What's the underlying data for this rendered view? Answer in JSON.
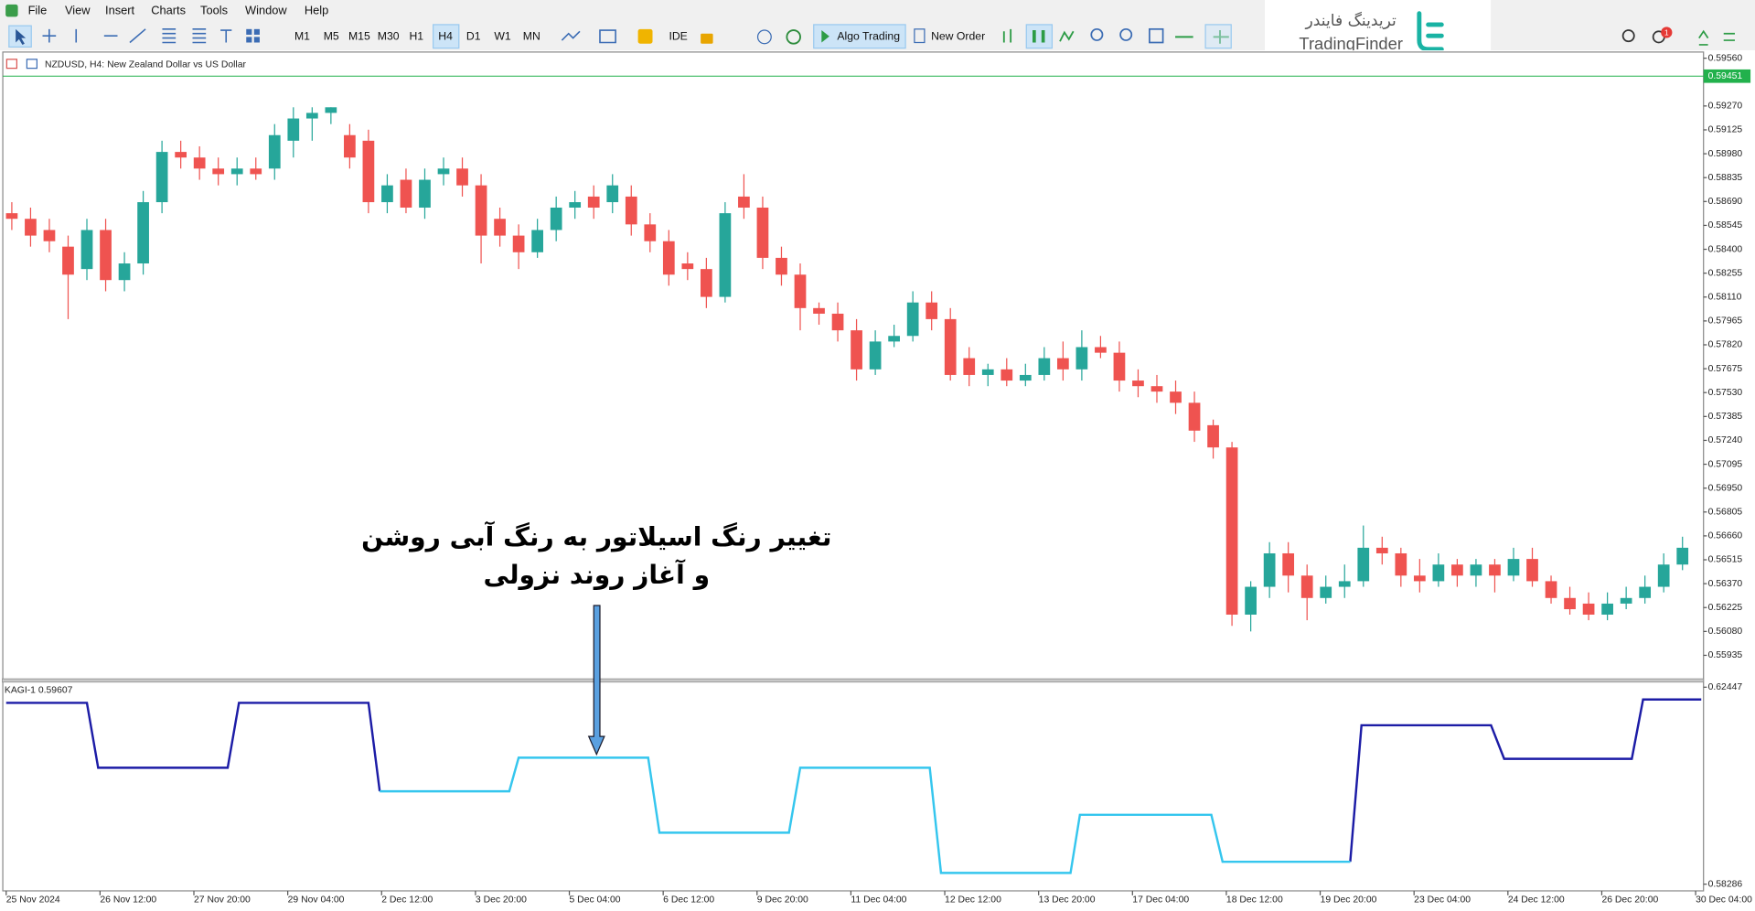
{
  "menu": [
    "File",
    "View",
    "Insert",
    "Charts",
    "Tools",
    "Window",
    "Help"
  ],
  "toolbar": {
    "timeframes": [
      "M1",
      "M5",
      "M15",
      "M30",
      "H1",
      "H4",
      "D1",
      "W1",
      "MN"
    ],
    "ide": "IDE",
    "algo_trading": "Algo Trading",
    "new_order": "New Order"
  },
  "logo": {
    "persian": "تریدینگ فایندر",
    "latin": "TradingFinder"
  },
  "notifications": 1,
  "annotation": [
    "تغییر رنگ اسیلاتور به رنگ آبی روشن",
    "و آغاز روند نزولی"
  ],
  "chart_data": [
    {
      "type": "candlestick",
      "title": "NZDUSD, H4:  New Zealand Dollar vs US Dollar",
      "up_color": "#26a69a",
      "down_color": "#ef5350",
      "last_price": 0.59451,
      "last_price_color": "#22b14c",
      "xlim": [
        -0.48,
        90.12
      ],
      "ylim": [
        0.55796,
        0.59594
      ],
      "yticks": [
        {
          "value": 0.5956,
          "label": "0.59560"
        },
        {
          "value": 0.5927,
          "label": "0.59270"
        },
        0.59125,
        {
          "value": 0.5898,
          "label": "0.58980"
        },
        0.58835,
        {
          "value": 0.5869,
          "label": "0.58690"
        },
        0.58545,
        {
          "value": 0.584,
          "label": "0.58400"
        },
        0.58255,
        {
          "value": 0.5811,
          "label": "0.58110"
        },
        0.57965,
        {
          "value": 0.5782,
          "label": "0.57820"
        },
        0.57675,
        {
          "value": 0.5753,
          "label": "0.57530"
        },
        0.57385,
        {
          "value": 0.5724,
          "label": "0.57240"
        },
        0.57095,
        {
          "value": 0.5695,
          "label": "0.56950"
        },
        0.56805,
        {
          "value": 0.5666,
          "label": "0.56660"
        },
        0.56515,
        {
          "value": 0.5637,
          "label": "0.56370"
        },
        0.56225,
        {
          "value": 0.5608,
          "label": "0.56080"
        },
        0.55935
      ],
      "xticks": [
        {
          "value": -0.3,
          "label": "25 Nov 2024"
        },
        {
          "value": 4.7,
          "label": "26 Nov 12:00"
        },
        {
          "value": 9.7,
          "label": "27 Nov 20:00"
        },
        {
          "value": 14.7,
          "label": "29 Nov 04:00"
        },
        {
          "value": 19.7,
          "label": "2 Dec 12:00"
        },
        {
          "value": 24.7,
          "label": "3 Dec 20:00"
        },
        {
          "value": 29.7,
          "label": "5 Dec 04:00"
        },
        {
          "value": 34.7,
          "label": "6 Dec 12:00"
        },
        {
          "value": 39.7,
          "label": "9 Dec 20:00"
        },
        {
          "value": 44.7,
          "label": "11 Dec 04:00"
        },
        {
          "value": 49.7,
          "label": "12 Dec 12:00"
        },
        {
          "value": 54.7,
          "label": "13 Dec 20:00"
        },
        {
          "value": 59.7,
          "label": "17 Dec 04:00"
        },
        {
          "value": 64.7,
          "label": "18 Dec 12:00"
        },
        {
          "value": 69.7,
          "label": "19 Dec 20:00"
        },
        {
          "value": 74.7,
          "label": "23 Dec 04:00"
        },
        {
          "value": 79.7,
          "label": "24 Dec 12:00"
        },
        {
          "value": 84.7,
          "label": "26 Dec 20:00"
        },
        {
          "value": 89.7,
          "label": "30 Dec 04:00"
        }
      ],
      "candles": [
        [
          0.58619,
          0.58686,
          0.58517,
          0.58585
        ],
        [
          0.58585,
          0.58653,
          0.58416,
          0.58483
        ],
        [
          0.58517,
          0.58585,
          0.58382,
          0.58449
        ],
        [
          0.58416,
          0.58483,
          0.57976,
          0.58246
        ],
        [
          0.5828,
          0.58585,
          0.58213,
          0.58517
        ],
        [
          0.58517,
          0.58585,
          0.58145,
          0.58213
        ],
        [
          0.58213,
          0.58382,
          0.58145,
          0.58314
        ],
        [
          0.58314,
          0.58754,
          0.58246,
          0.58686
        ],
        [
          0.58686,
          0.59059,
          0.58619,
          0.58991
        ],
        [
          0.58991,
          0.59059,
          0.5889,
          0.58957
        ],
        [
          0.58957,
          0.59025,
          0.58822,
          0.5889
        ],
        [
          0.5889,
          0.58957,
          0.58788,
          0.58856
        ],
        [
          0.58856,
          0.58957,
          0.58788,
          0.5889
        ],
        [
          0.5889,
          0.58957,
          0.58822,
          0.58856
        ],
        [
          0.5889,
          0.5916,
          0.58822,
          0.59093
        ],
        [
          0.59059,
          0.59262,
          0.58957,
          0.59194
        ],
        [
          0.59194,
          0.59262,
          0.59059,
          0.59228
        ],
        [
          0.59228,
          0.59262,
          0.5916,
          0.59262
        ],
        [
          0.59093,
          0.5916,
          0.5889,
          0.58957
        ],
        [
          0.59059,
          0.59126,
          0.58619,
          0.58686
        ],
        [
          0.58686,
          0.58856,
          0.58619,
          0.58788
        ],
        [
          0.58822,
          0.5889,
          0.58619,
          0.58653
        ],
        [
          0.58653,
          0.5889,
          0.58585,
          0.58822
        ],
        [
          0.58856,
          0.58957,
          0.58788,
          0.5889
        ],
        [
          0.5889,
          0.58957,
          0.5872,
          0.58788
        ],
        [
          0.58788,
          0.58856,
          0.58314,
          0.58483
        ],
        [
          0.58585,
          0.58653,
          0.58416,
          0.58483
        ],
        [
          0.58483,
          0.58551,
          0.5828,
          0.58382
        ],
        [
          0.58382,
          0.58585,
          0.58348,
          0.58517
        ],
        [
          0.58517,
          0.5872,
          0.58449,
          0.58653
        ],
        [
          0.58653,
          0.58754,
          0.58585,
          0.58686
        ],
        [
          0.5872,
          0.58788,
          0.58585,
          0.58653
        ],
        [
          0.58686,
          0.58856,
          0.58619,
          0.58788
        ],
        [
          0.5872,
          0.58788,
          0.58483,
          0.58551
        ],
        [
          0.58551,
          0.58619,
          0.58382,
          0.58449
        ],
        [
          0.58449,
          0.58517,
          0.58179,
          0.58246
        ],
        [
          0.58314,
          0.58382,
          0.58213,
          0.5828
        ],
        [
          0.5828,
          0.58348,
          0.58043,
          0.58111
        ],
        [
          0.58111,
          0.58686,
          0.58077,
          0.58619
        ],
        [
          0.5872,
          0.58856,
          0.58585,
          0.58653
        ],
        [
          0.58653,
          0.5872,
          0.5828,
          0.58348
        ],
        [
          0.58348,
          0.58416,
          0.58179,
          0.58246
        ],
        [
          0.58246,
          0.58314,
          0.57908,
          0.58043
        ],
        [
          0.58043,
          0.58077,
          0.57942,
          0.58009
        ],
        [
          0.58009,
          0.58077,
          0.5784,
          0.57908
        ],
        [
          0.57908,
          0.57976,
          0.57603,
          0.57671
        ],
        [
          0.57671,
          0.57908,
          0.57637,
          0.5784
        ],
        [
          0.5784,
          0.57942,
          0.57806,
          0.57874
        ],
        [
          0.57874,
          0.58145,
          0.5784,
          0.58077
        ],
        [
          0.58077,
          0.58145,
          0.57908,
          0.57976
        ],
        [
          0.57976,
          0.58043,
          0.57603,
          0.57637
        ],
        [
          0.57739,
          0.57806,
          0.57569,
          0.57637
        ],
        [
          0.57637,
          0.57705,
          0.57569,
          0.57671
        ],
        [
          0.57671,
          0.57739,
          0.57569,
          0.57603
        ],
        [
          0.57603,
          0.57705,
          0.57569,
          0.57637
        ],
        [
          0.57637,
          0.57806,
          0.57603,
          0.57739
        ],
        [
          0.57739,
          0.5784,
          0.57603,
          0.57671
        ],
        [
          0.57671,
          0.57908,
          0.57603,
          0.57806
        ],
        [
          0.57806,
          0.57874,
          0.57739,
          0.57772
        ],
        [
          0.57772,
          0.5784,
          0.57536,
          0.57603
        ],
        [
          0.57603,
          0.57671,
          0.57502,
          0.57569
        ],
        [
          0.57569,
          0.57637,
          0.57468,
          0.57536
        ],
        [
          0.57536,
          0.57603,
          0.574,
          0.57468
        ],
        [
          0.57468,
          0.57536,
          0.57231,
          0.57299
        ],
        [
          0.57332,
          0.57366,
          0.57129,
          0.57197
        ],
        [
          0.57197,
          0.57231,
          0.56114,
          0.56182
        ],
        [
          0.56182,
          0.56385,
          0.5608,
          0.56351
        ],
        [
          0.56351,
          0.56622,
          0.56283,
          0.56554
        ],
        [
          0.56554,
          0.56622,
          0.56317,
          0.56419
        ],
        [
          0.56419,
          0.56486,
          0.56148,
          0.56283
        ],
        [
          0.56283,
          0.56419,
          0.56249,
          0.56351
        ],
        [
          0.56351,
          0.56486,
          0.56283,
          0.56385
        ],
        [
          0.56385,
          0.56723,
          0.56351,
          0.56588
        ],
        [
          0.56588,
          0.56655,
          0.56486,
          0.56554
        ],
        [
          0.56554,
          0.56588,
          0.56351,
          0.56419
        ],
        [
          0.56419,
          0.5652,
          0.56317,
          0.56385
        ],
        [
          0.56385,
          0.56554,
          0.56351,
          0.56486
        ],
        [
          0.56486,
          0.5652,
          0.56351,
          0.56419
        ],
        [
          0.56419,
          0.5652,
          0.56351,
          0.56486
        ],
        [
          0.56486,
          0.5652,
          0.56317,
          0.56419
        ],
        [
          0.56419,
          0.56588,
          0.56385,
          0.5652
        ],
        [
          0.5652,
          0.56588,
          0.56351,
          0.56385
        ],
        [
          0.56385,
          0.56419,
          0.56249,
          0.56283
        ],
        [
          0.56283,
          0.56351,
          0.56182,
          0.56215
        ],
        [
          0.56249,
          0.56317,
          0.56148,
          0.56182
        ],
        [
          0.56182,
          0.56317,
          0.56148,
          0.56249
        ],
        [
          0.56249,
          0.56351,
          0.56215,
          0.56283
        ],
        [
          0.56283,
          0.56419,
          0.56249,
          0.56351
        ],
        [
          0.56351,
          0.56554,
          0.56317,
          0.56486
        ],
        [
          0.56486,
          0.56655,
          0.56452,
          0.56588
        ]
      ]
    },
    {
      "type": "line",
      "title": "KAGI-1 0.59607",
      "xlim": [
        -0.48,
        90.12
      ],
      "ylim": [
        0.58145,
        0.62542
      ],
      "yticks": [
        0.62447,
        0.58286
      ],
      "series": [
        {
          "color": "#1c1ca6",
          "x": [
            -0.3,
            4.0,
            4.6,
            11.5,
            12.1,
            19.0,
            19.6,
            null,
            71.3,
            71.9,
            78.8,
            79.5,
            86.3,
            86.9,
            90.0
          ],
          "values": [
            0.62116,
            0.62116,
            0.60745,
            0.60745,
            0.62116,
            0.62116,
            0.60248,
            null,
            0.58759,
            0.61643,
            0.61643,
            0.60934,
            0.60934,
            0.62187,
            0.62187
          ]
        },
        {
          "color": "#35c6ee",
          "x": [
            19.6,
            26.5,
            27.0,
            33.9,
            34.5,
            41.4,
            42.0,
            48.9,
            49.5,
            56.4,
            56.9,
            63.9,
            64.5,
            71.3
          ],
          "values": [
            0.60248,
            0.60248,
            0.60958,
            0.60958,
            0.59374,
            0.59374,
            0.60745,
            0.60745,
            0.58523,
            0.58523,
            0.59752,
            0.59752,
            0.58759,
            0.58759
          ]
        }
      ]
    }
  ]
}
